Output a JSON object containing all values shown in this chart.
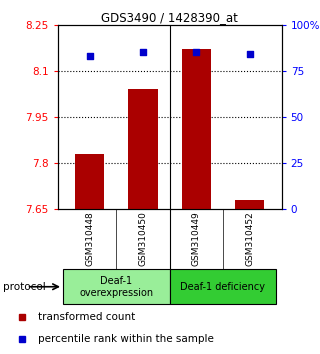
{
  "title": "GDS3490 / 1428390_at",
  "samples": [
    "GSM310448",
    "GSM310450",
    "GSM310449",
    "GSM310452"
  ],
  "bar_values": [
    7.83,
    8.04,
    8.17,
    7.68
  ],
  "bar_bottom": 7.65,
  "dot_values": [
    83,
    85,
    85,
    84
  ],
  "ylim_left": [
    7.65,
    8.25
  ],
  "ylim_right": [
    0,
    100
  ],
  "yticks_left": [
    7.65,
    7.8,
    7.95,
    8.1,
    8.25
  ],
  "ytick_labels_left": [
    "7.65",
    "7.8",
    "7.95",
    "8.1",
    "8.25"
  ],
  "yticks_right": [
    0,
    25,
    50,
    75,
    100
  ],
  "ytick_labels_right": [
    "0",
    "25",
    "50",
    "75",
    "100%"
  ],
  "hlines": [
    7.8,
    7.95,
    8.1
  ],
  "bar_color": "#aa0000",
  "dot_color": "#0000cc",
  "bar_width": 0.55,
  "protocol_label": "protocol",
  "legend_bar_label": "transformed count",
  "legend_dot_label": "percentile rank within the sample",
  "background_sample": "#cccccc",
  "background_group1": "#99ee99",
  "background_group2": "#33cc33",
  "group1_label": "Deaf-1\noverexpression",
  "group2_label": "Deaf-1 deficiency"
}
